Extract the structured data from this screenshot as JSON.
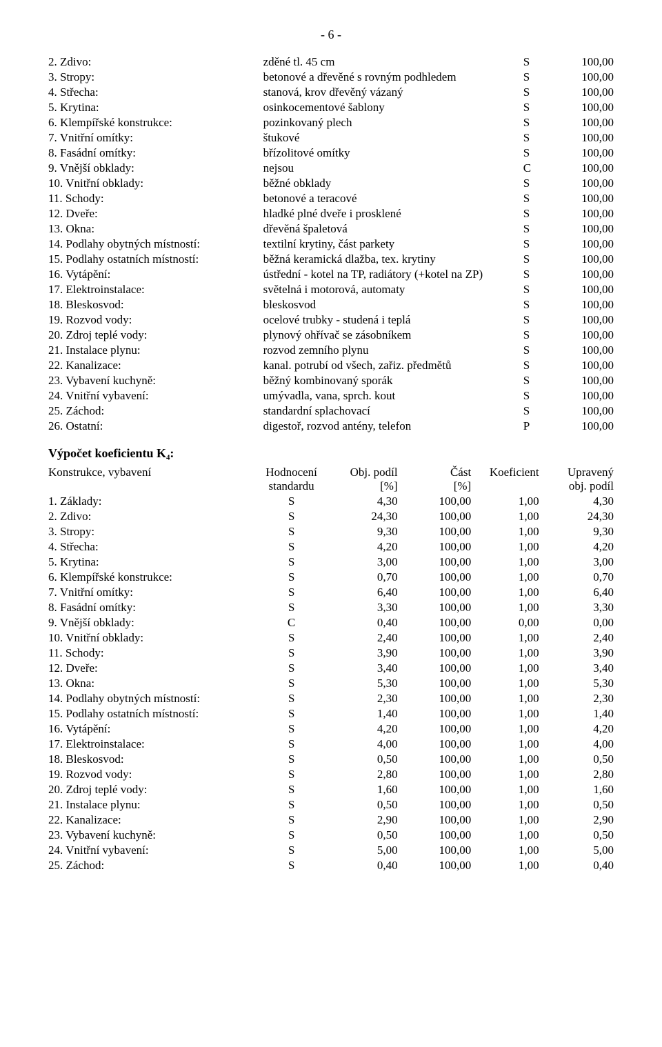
{
  "page_label": "- 6 -",
  "table1": {
    "rows": [
      {
        "label": "2. Zdivo:",
        "desc": "zděné tl. 45 cm",
        "code": "S",
        "val": "100,00"
      },
      {
        "label": "3. Stropy:",
        "desc": "betonové a dřevěné s rovným podhledem",
        "code": "S",
        "val": "100,00"
      },
      {
        "label": "4. Střecha:",
        "desc": "stanová, krov dřevěný vázaný",
        "code": "S",
        "val": "100,00"
      },
      {
        "label": "5. Krytina:",
        "desc": "osinkocementové šablony",
        "code": "S",
        "val": "100,00"
      },
      {
        "label": "6. Klempířské konstrukce:",
        "desc": "pozinkovaný plech",
        "code": "S",
        "val": "100,00"
      },
      {
        "label": "7. Vnitřní omítky:",
        "desc": "štukové",
        "code": "S",
        "val": "100,00"
      },
      {
        "label": "8. Fasádní omítky:",
        "desc": "břízolitové omítky",
        "code": "S",
        "val": "100,00"
      },
      {
        "label": "9. Vnější obklady:",
        "desc": "nejsou",
        "code": "C",
        "val": "100,00"
      },
      {
        "label": "10. Vnitřní obklady:",
        "desc": "běžné obklady",
        "code": "S",
        "val": "100,00"
      },
      {
        "label": "11. Schody:",
        "desc": "betonové a teracové",
        "code": "S",
        "val": "100,00"
      },
      {
        "label": "12. Dveře:",
        "desc": "hladké plné dveře i prosklené",
        "code": "S",
        "val": "100,00"
      },
      {
        "label": "13. Okna:",
        "desc": "dřevěná špaletová",
        "code": "S",
        "val": "100,00"
      },
      {
        "label": "14. Podlahy obytných místností:",
        "desc": "textilní krytiny, část parkety",
        "code": "S",
        "val": "100,00"
      },
      {
        "label": "15. Podlahy ostatních místností:",
        "desc": "běžná keramická dlažba, tex. krytiny",
        "code": "S",
        "val": "100,00"
      },
      {
        "label": "16. Vytápění:",
        "desc": "ústřední - kotel na TP, radiátory (+kotel na ZP)",
        "code": "S",
        "val": "100,00"
      },
      {
        "label": "17. Elektroinstalace:",
        "desc": "světelná  i motorová, automaty",
        "code": "S",
        "val": "100,00"
      },
      {
        "label": "18. Bleskosvod:",
        "desc": "bleskosvod",
        "code": "S",
        "val": "100,00"
      },
      {
        "label": "19. Rozvod vody:",
        "desc": "ocelové trubky - studená i teplá",
        "code": "S",
        "val": "100,00"
      },
      {
        "label": "20. Zdroj teplé vody:",
        "desc": "plynový ohřívač se zásobníkem",
        "code": "S",
        "val": "100,00"
      },
      {
        "label": "21. Instalace plynu:",
        "desc": "rozvod zemního plynu",
        "code": "S",
        "val": "100,00"
      },
      {
        "label": "22. Kanalizace:",
        "desc": "kanal.  potrubí od všech, zařiz. předmětů",
        "code": "S",
        "val": "100,00"
      },
      {
        "label": "23. Vybavení kuchyně:",
        "desc": "běžný kombinovaný sporák",
        "code": "S",
        "val": "100,00"
      },
      {
        "label": "24. Vnitřní vybavení:",
        "desc": "umývadla, vana, sprch. kout",
        "code": "S",
        "val": "100,00"
      },
      {
        "label": "25. Záchod:",
        "desc": "standardní splachovací",
        "code": "S",
        "val": "100,00"
      },
      {
        "label": "26. Ostatní:",
        "desc": "digestoř, rozvod antény, telefon",
        "code": "P",
        "val": "100,00"
      }
    ]
  },
  "k4_title": "Výpočet koeficientu K₄:",
  "table2": {
    "header": {
      "c1a": "Konstrukce, vybavení",
      "c1b": "",
      "c2a": "Hodnocení",
      "c2b": "standardu",
      "c3a": "Obj. podíl",
      "c3b": "[%]",
      "c4a": "Část",
      "c4b": "[%]",
      "c5a": "Koeficient",
      "c5b": "",
      "c6a": "Upravený",
      "c6b": "obj. podíl"
    },
    "rows": [
      {
        "label": "1. Základy:",
        "hod": "S",
        "obj": "4,30",
        "cast": "100,00",
        "koef": "1,00",
        "upr": "4,30"
      },
      {
        "label": "2. Zdivo:",
        "hod": "S",
        "obj": "24,30",
        "cast": "100,00",
        "koef": "1,00",
        "upr": "24,30"
      },
      {
        "label": "3. Stropy:",
        "hod": "S",
        "obj": "9,30",
        "cast": "100,00",
        "koef": "1,00",
        "upr": "9,30"
      },
      {
        "label": "4. Střecha:",
        "hod": "S",
        "obj": "4,20",
        "cast": "100,00",
        "koef": "1,00",
        "upr": "4,20"
      },
      {
        "label": "5. Krytina:",
        "hod": "S",
        "obj": "3,00",
        "cast": "100,00",
        "koef": "1,00",
        "upr": "3,00"
      },
      {
        "label": "6. Klempířské konstrukce:",
        "hod": "S",
        "obj": "0,70",
        "cast": "100,00",
        "koef": "1,00",
        "upr": "0,70"
      },
      {
        "label": "7. Vnitřní omítky:",
        "hod": "S",
        "obj": "6,40",
        "cast": "100,00",
        "koef": "1,00",
        "upr": "6,40"
      },
      {
        "label": "8. Fasádní omítky:",
        "hod": "S",
        "obj": "3,30",
        "cast": "100,00",
        "koef": "1,00",
        "upr": "3,30"
      },
      {
        "label": "9. Vnější obklady:",
        "hod": "C",
        "obj": "0,40",
        "cast": "100,00",
        "koef": "0,00",
        "upr": "0,00"
      },
      {
        "label": "10. Vnitřní obklady:",
        "hod": "S",
        "obj": "2,40",
        "cast": "100,00",
        "koef": "1,00",
        "upr": "2,40"
      },
      {
        "label": "11. Schody:",
        "hod": "S",
        "obj": "3,90",
        "cast": "100,00",
        "koef": "1,00",
        "upr": "3,90"
      },
      {
        "label": "12. Dveře:",
        "hod": "S",
        "obj": "3,40",
        "cast": "100,00",
        "koef": "1,00",
        "upr": "3,40"
      },
      {
        "label": "13. Okna:",
        "hod": "S",
        "obj": "5,30",
        "cast": "100,00",
        "koef": "1,00",
        "upr": "5,30"
      },
      {
        "label": "14. Podlahy obytných místností:",
        "hod": "S",
        "obj": "2,30",
        "cast": "100,00",
        "koef": "1,00",
        "upr": "2,30"
      },
      {
        "label": "15. Podlahy ostatních místností:",
        "hod": "S",
        "obj": "1,40",
        "cast": "100,00",
        "koef": "1,00",
        "upr": "1,40"
      },
      {
        "label": "16. Vytápění:",
        "hod": "S",
        "obj": "4,20",
        "cast": "100,00",
        "koef": "1,00",
        "upr": "4,20"
      },
      {
        "label": "17. Elektroinstalace:",
        "hod": "S",
        "obj": "4,00",
        "cast": "100,00",
        "koef": "1,00",
        "upr": "4,00"
      },
      {
        "label": "18. Bleskosvod:",
        "hod": "S",
        "obj": "0,50",
        "cast": "100,00",
        "koef": "1,00",
        "upr": "0,50"
      },
      {
        "label": "19. Rozvod vody:",
        "hod": "S",
        "obj": "2,80",
        "cast": "100,00",
        "koef": "1,00",
        "upr": "2,80"
      },
      {
        "label": "20. Zdroj teplé vody:",
        "hod": "S",
        "obj": "1,60",
        "cast": "100,00",
        "koef": "1,00",
        "upr": "1,60"
      },
      {
        "label": "21. Instalace plynu:",
        "hod": "S",
        "obj": "0,50",
        "cast": "100,00",
        "koef": "1,00",
        "upr": "0,50"
      },
      {
        "label": "22. Kanalizace:",
        "hod": "S",
        "obj": "2,90",
        "cast": "100,00",
        "koef": "1,00",
        "upr": "2,90"
      },
      {
        "label": "23. Vybavení kuchyně:",
        "hod": "S",
        "obj": "0,50",
        "cast": "100,00",
        "koef": "1,00",
        "upr": "0,50"
      },
      {
        "label": "24. Vnitřní vybavení:",
        "hod": "S",
        "obj": "5,00",
        "cast": "100,00",
        "koef": "1,00",
        "upr": "5,00"
      },
      {
        "label": "25. Záchod:",
        "hod": "S",
        "obj": "0,40",
        "cast": "100,00",
        "koef": "1,00",
        "upr": "0,40"
      }
    ]
  }
}
